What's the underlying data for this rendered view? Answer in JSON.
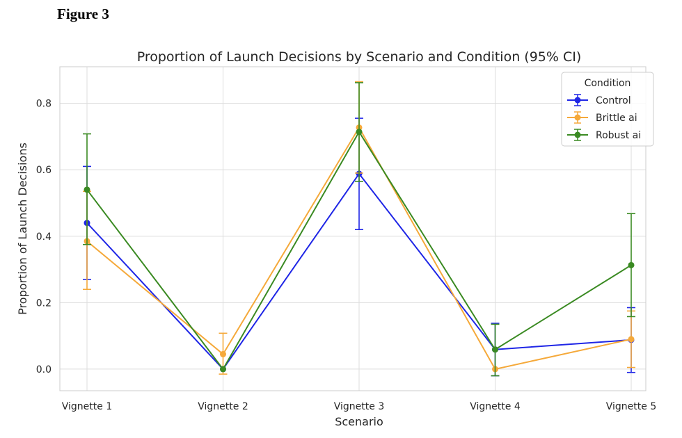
{
  "figure_label": "Figure 3",
  "chart_data": {
    "type": "line",
    "title": "Proportion of Launch Decisions by Scenario and Condition (95% CI)",
    "xlabel": "Scenario",
    "ylabel": "Proportion of Launch Decisions",
    "categories": [
      "Vignette 1",
      "Vignette 2",
      "Vignette 3",
      "Vignette 4",
      "Vignette 5"
    ],
    "ylim": [
      -0.065,
      0.91
    ],
    "yticks": [
      0.0,
      0.2,
      0.4,
      0.6,
      0.8
    ],
    "ytick_labels": [
      "0.0",
      "0.2",
      "0.4",
      "0.6",
      "0.8"
    ],
    "grid": true,
    "legend": {
      "title": "Condition",
      "placement": "top-right"
    },
    "series": [
      {
        "name": "Control",
        "color": "#1f26e6",
        "values": [
          0.44,
          0.0,
          0.588,
          0.059,
          0.088
        ],
        "ci_low": [
          0.27,
          0.0,
          0.42,
          -0.02,
          -0.01
        ],
        "ci_high": [
          0.61,
          0.0,
          0.755,
          0.138,
          0.185
        ]
      },
      {
        "name": "Brittle ai",
        "color": "#f5a93a",
        "values": [
          0.385,
          0.045,
          0.727,
          0.0,
          0.09
        ],
        "ci_low": [
          0.24,
          -0.015,
          0.59,
          0.0,
          0.005
        ],
        "ci_high": [
          0.535,
          0.108,
          0.865,
          0.0,
          0.175
        ]
      },
      {
        "name": "Robust ai",
        "color": "#3a8a22",
        "values": [
          0.54,
          0.0,
          0.714,
          0.059,
          0.313
        ],
        "ci_low": [
          0.375,
          0.0,
          0.565,
          -0.02,
          0.158
        ],
        "ci_high": [
          0.708,
          0.0,
          0.862,
          0.135,
          0.468
        ]
      }
    ]
  }
}
